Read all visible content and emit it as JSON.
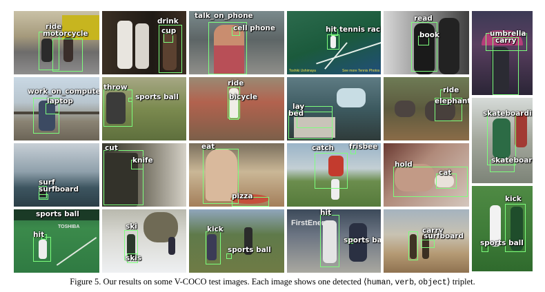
{
  "figure": {
    "caption_prefix": "Figure 5. Our results on some V-COCO test images. Each image shows one detected ",
    "triplet_open": "⟨",
    "triplet_human": "human",
    "triplet_sep1": ", ",
    "triplet_verb": "verb",
    "triplet_sep2": ", ",
    "triplet_object": "object",
    "triplet_close": "⟩",
    "caption_suffix": " triplet."
  },
  "tiles": {
    "r1c1": {
      "verb": "ride",
      "object": "motorcycle"
    },
    "r1c2": {
      "verb": "drink",
      "object": "cup"
    },
    "r1c3": {
      "verb": "talk_on_phone",
      "object": "cell phone"
    },
    "r1c4": {
      "verb": "hit",
      "object": "tennis racket",
      "overlay_left": "Toshiki Ushimaya",
      "overlay_right": "See more Tennis Photos"
    },
    "r1c5": {
      "verb": "read",
      "object": "book"
    },
    "r1c6": {
      "verb": "carry",
      "object": "umbrella"
    },
    "r2c1": {
      "verb": "work_on_computer",
      "object": "laptop"
    },
    "r2c2": {
      "verb": "throw",
      "object": "sports ball"
    },
    "r2c3": {
      "verb": "ride",
      "object": "bicycle"
    },
    "r2c4": {
      "verb": "lay",
      "object": "bed"
    },
    "r2c5": {
      "verb": "ride",
      "object": "elephant"
    },
    "r2c6": {
      "verb": "skateboarding",
      "object": "skateboard"
    },
    "r3c1": {
      "verb": "surf",
      "object": "surfboard"
    },
    "r3c2": {
      "verb": "cut",
      "object": "knife"
    },
    "r3c3": {
      "verb": "eat",
      "object": "pizza"
    },
    "r3c4": {
      "verb": "catch",
      "object": "frisbee"
    },
    "r3c5": {
      "verb": "hold",
      "object": "cat"
    },
    "r4c1": {
      "verb": "hit",
      "object": "sports ball",
      "banner": "TOSHIBA"
    },
    "r4c2": {
      "verb": "ski",
      "object": "skis"
    },
    "r4c3": {
      "verb": "kick",
      "object": "sports ball"
    },
    "r4c4": {
      "verb": "hit",
      "object": "sports ball",
      "banner": "FirstEnergy"
    },
    "r4c5": {
      "verb": "carry",
      "object": "surfboard"
    },
    "r4c6": {
      "verb": "kick",
      "object": "sports ball"
    }
  }
}
